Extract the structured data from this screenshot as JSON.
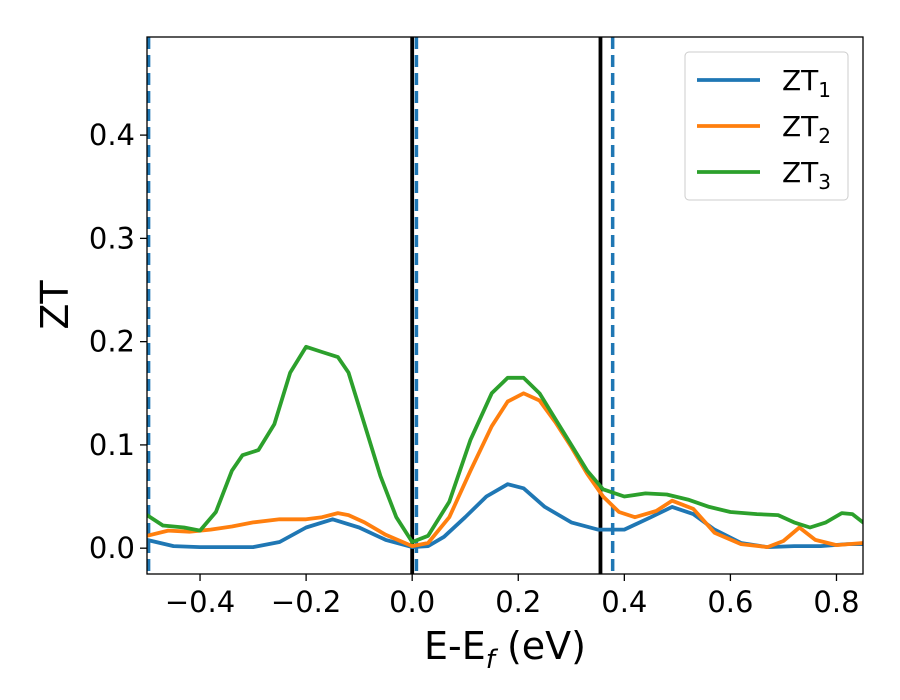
{
  "chart_data": {
    "type": "line",
    "title": "",
    "xlabel": "E-E",
    "xlabel_sub": "f",
    "xlabel_unit": " (eV)",
    "ylabel": "ZT",
    "xlim": [
      -0.5,
      0.85
    ],
    "ylim": [
      -0.025,
      0.495
    ],
    "xticks": [
      {
        "value": -0.4,
        "label": "−0.4"
      },
      {
        "value": -0.2,
        "label": "−0.2"
      },
      {
        "value": 0.0,
        "label": "0.0"
      },
      {
        "value": 0.2,
        "label": "0.2"
      },
      {
        "value": 0.4,
        "label": "0.4"
      },
      {
        "value": 0.6,
        "label": "0.6"
      },
      {
        "value": 0.8,
        "label": "0.8"
      }
    ],
    "yticks": [
      {
        "value": 0.0,
        "label": "0.0"
      },
      {
        "value": 0.1,
        "label": "0.1"
      },
      {
        "value": 0.2,
        "label": "0.2"
      },
      {
        "value": 0.3,
        "label": "0.3"
      },
      {
        "value": 0.4,
        "label": "0.4"
      }
    ],
    "grid": false,
    "legend_position": "top-right",
    "vlines": [
      {
        "x": -0.497,
        "style": "dashed",
        "color": "#1f77b4"
      },
      {
        "x": 0.0,
        "style": "solid",
        "color": "#000000"
      },
      {
        "x": 0.008,
        "style": "dashed",
        "color": "#1f77b4"
      },
      {
        "x": 0.355,
        "style": "solid",
        "color": "#000000"
      },
      {
        "x": 0.378,
        "style": "dashed",
        "color": "#1f77b4"
      }
    ],
    "series": [
      {
        "name": "ZT",
        "sub": "1",
        "color": "#1f77b4",
        "points": [
          [
            -0.5,
            0.008
          ],
          [
            -0.45,
            0.002
          ],
          [
            -0.4,
            0.001
          ],
          [
            -0.35,
            0.001
          ],
          [
            -0.3,
            0.001
          ],
          [
            -0.25,
            0.006
          ],
          [
            -0.2,
            0.02
          ],
          [
            -0.15,
            0.028
          ],
          [
            -0.1,
            0.02
          ],
          [
            -0.05,
            0.008
          ],
          [
            0.0,
            0.001
          ],
          [
            0.03,
            0.002
          ],
          [
            0.06,
            0.011
          ],
          [
            0.1,
            0.03
          ],
          [
            0.14,
            0.05
          ],
          [
            0.18,
            0.062
          ],
          [
            0.21,
            0.058
          ],
          [
            0.25,
            0.04
          ],
          [
            0.3,
            0.025
          ],
          [
            0.35,
            0.018
          ],
          [
            0.4,
            0.018
          ],
          [
            0.45,
            0.03
          ],
          [
            0.49,
            0.04
          ],
          [
            0.53,
            0.033
          ],
          [
            0.57,
            0.018
          ],
          [
            0.62,
            0.005
          ],
          [
            0.67,
            0.001
          ],
          [
            0.72,
            0.002
          ],
          [
            0.77,
            0.002
          ],
          [
            0.82,
            0.004
          ],
          [
            0.85,
            0.004
          ]
        ]
      },
      {
        "name": "ZT",
        "sub": "2",
        "color": "#ff7f0e",
        "points": [
          [
            -0.5,
            0.012
          ],
          [
            -0.46,
            0.017
          ],
          [
            -0.42,
            0.016
          ],
          [
            -0.38,
            0.018
          ],
          [
            -0.34,
            0.021
          ],
          [
            -0.3,
            0.025
          ],
          [
            -0.25,
            0.028
          ],
          [
            -0.2,
            0.028
          ],
          [
            -0.17,
            0.03
          ],
          [
            -0.14,
            0.034
          ],
          [
            -0.12,
            0.032
          ],
          [
            -0.09,
            0.025
          ],
          [
            -0.05,
            0.013
          ],
          [
            0.0,
            0.002
          ],
          [
            0.03,
            0.005
          ],
          [
            0.07,
            0.03
          ],
          [
            0.11,
            0.075
          ],
          [
            0.15,
            0.118
          ],
          [
            0.18,
            0.142
          ],
          [
            0.21,
            0.15
          ],
          [
            0.24,
            0.143
          ],
          [
            0.27,
            0.122
          ],
          [
            0.3,
            0.098
          ],
          [
            0.33,
            0.072
          ],
          [
            0.36,
            0.05
          ],
          [
            0.39,
            0.035
          ],
          [
            0.42,
            0.03
          ],
          [
            0.46,
            0.036
          ],
          [
            0.49,
            0.046
          ],
          [
            0.53,
            0.038
          ],
          [
            0.57,
            0.015
          ],
          [
            0.62,
            0.004
          ],
          [
            0.67,
            0.001
          ],
          [
            0.7,
            0.007
          ],
          [
            0.73,
            0.02
          ],
          [
            0.76,
            0.008
          ],
          [
            0.8,
            0.003
          ],
          [
            0.85,
            0.005
          ]
        ]
      },
      {
        "name": "ZT",
        "sub": "3",
        "color": "#2ca02c",
        "points": [
          [
            -0.5,
            0.032
          ],
          [
            -0.47,
            0.022
          ],
          [
            -0.43,
            0.02
          ],
          [
            -0.4,
            0.017
          ],
          [
            -0.37,
            0.035
          ],
          [
            -0.34,
            0.075
          ],
          [
            -0.32,
            0.09
          ],
          [
            -0.29,
            0.095
          ],
          [
            -0.26,
            0.12
          ],
          [
            -0.23,
            0.17
          ],
          [
            -0.2,
            0.195
          ],
          [
            -0.17,
            0.19
          ],
          [
            -0.14,
            0.185
          ],
          [
            -0.12,
            0.17
          ],
          [
            -0.09,
            0.12
          ],
          [
            -0.06,
            0.07
          ],
          [
            -0.03,
            0.03
          ],
          [
            0.0,
            0.006
          ],
          [
            0.03,
            0.012
          ],
          [
            0.07,
            0.045
          ],
          [
            0.11,
            0.105
          ],
          [
            0.15,
            0.15
          ],
          [
            0.18,
            0.165
          ],
          [
            0.21,
            0.165
          ],
          [
            0.24,
            0.15
          ],
          [
            0.27,
            0.125
          ],
          [
            0.3,
            0.1
          ],
          [
            0.33,
            0.075
          ],
          [
            0.36,
            0.057
          ],
          [
            0.4,
            0.05
          ],
          [
            0.44,
            0.053
          ],
          [
            0.48,
            0.052
          ],
          [
            0.52,
            0.047
          ],
          [
            0.56,
            0.04
          ],
          [
            0.6,
            0.035
          ],
          [
            0.65,
            0.033
          ],
          [
            0.69,
            0.032
          ],
          [
            0.72,
            0.025
          ],
          [
            0.75,
            0.02
          ],
          [
            0.78,
            0.025
          ],
          [
            0.81,
            0.034
          ],
          [
            0.83,
            0.033
          ],
          [
            0.85,
            0.025
          ]
        ]
      }
    ]
  }
}
